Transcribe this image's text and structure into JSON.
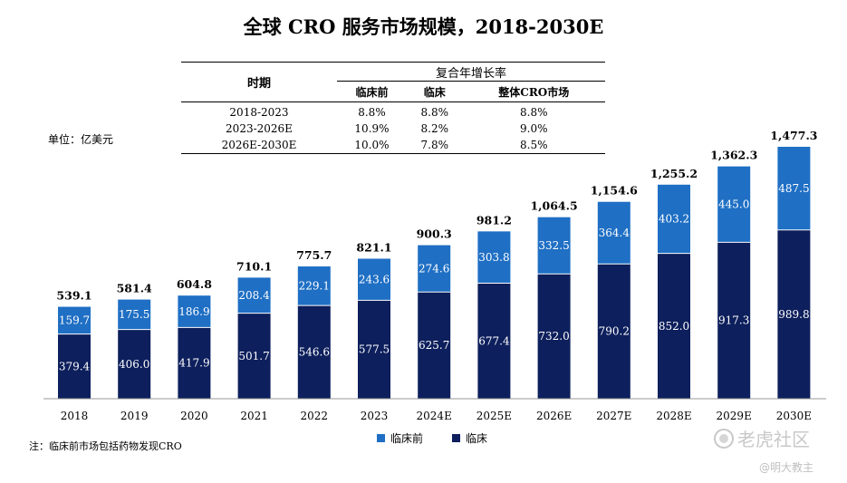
{
  "title": "全球 CRO 服务市场规模，2018-2030E",
  "unit": "单位：亿美元",
  "note": "注：临床前市场包括药物发现CRO",
  "cagr_table": {
    "period_header": "时期",
    "group_header": "复合年增长率",
    "columns": [
      "临床前",
      "临床",
      "整体CRO市场"
    ],
    "rows": [
      {
        "period": "2018-2023",
        "values": [
          "8.8%",
          "8.8%",
          "8.8%"
        ]
      },
      {
        "period": "2023-2026E",
        "values": [
          "10.9%",
          "8.2%",
          "9.0%"
        ]
      },
      {
        "period": "2026E-2030E",
        "values": [
          "10.0%",
          "7.8%",
          "8.5%"
        ]
      }
    ]
  },
  "legend": {
    "preclinical": "临床前",
    "clinical": "临床"
  },
  "watermark": {
    "brand": "老虎社区",
    "author": "@明大教主"
  },
  "chart_data": {
    "type": "bar",
    "stacked": true,
    "categories": [
      "2018",
      "2019",
      "2020",
      "2021",
      "2022",
      "2023",
      "2024E",
      "2025E",
      "2026E",
      "2027E",
      "2028E",
      "2029E",
      "2030E"
    ],
    "series": [
      {
        "name": "临床",
        "color": "#0d1f5c",
        "values": [
          379.4,
          406.0,
          417.9,
          501.7,
          546.6,
          577.5,
          625.7,
          677.4,
          732.0,
          790.2,
          852.0,
          917.3,
          989.8
        ],
        "labels": [
          "379.4",
          "406.0",
          "417.9",
          "501.7",
          "546.6",
          "577.5",
          "625.7",
          "677.4",
          "732.0",
          "790.2",
          "852.0",
          "917.3",
          "989.8"
        ]
      },
      {
        "name": "临床前",
        "color": "#1f6fc4",
        "values": [
          159.7,
          175.5,
          186.9,
          208.4,
          229.1,
          243.6,
          274.6,
          303.8,
          332.5,
          364.4,
          403.2,
          445.0,
          487.5
        ],
        "labels": [
          "159.7",
          "175.5",
          "186.9",
          "208.4",
          "229.1",
          "243.6",
          "274.6",
          "303.8",
          "332.5",
          "364.4",
          "403.2",
          "445.0",
          "487.5"
        ]
      }
    ],
    "totals": [
      539.1,
      581.4,
      604.8,
      710.1,
      775.7,
      821.1,
      900.3,
      981.2,
      1064.5,
      1154.6,
      1255.2,
      1362.3,
      1477.3
    ],
    "total_labels": [
      "539.1",
      "581.4",
      "604.8",
      "710.1",
      "775.7",
      "821.1",
      "900.3",
      "981.2",
      "1,064.5",
      "1,154.6",
      "1,255.2",
      "1,362.3",
      "1,477.3"
    ],
    "ylim": [
      0,
      1550
    ],
    "grid": false,
    "legend_position": "bottom-center"
  }
}
